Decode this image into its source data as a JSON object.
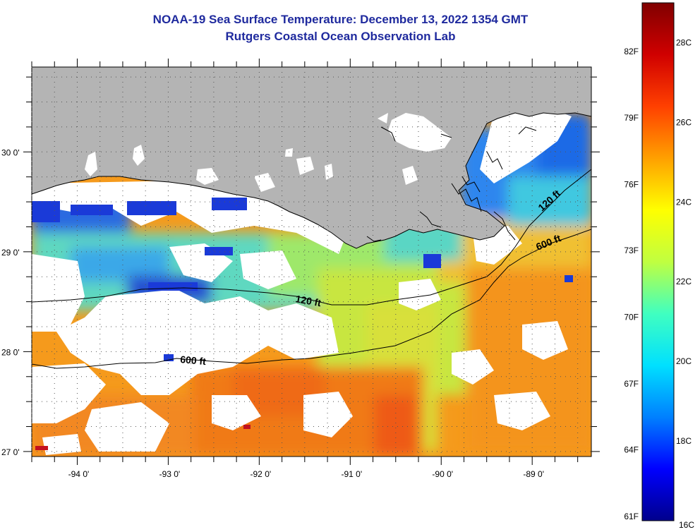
{
  "title": "NOAA-19 Sea Surface Temperature:  December 13, 2022 1354 GMT",
  "subtitle": "Rutgers Coastal Ocean Observation Lab",
  "map": {
    "lon_range": [
      -94.5,
      -88.35
    ],
    "lat_range": [
      26.95,
      30.85
    ],
    "lon_ticks": [
      {
        "value": -94,
        "label": "-94 0'"
      },
      {
        "value": -93,
        "label": "-93 0'"
      },
      {
        "value": -92,
        "label": "-92 0'"
      },
      {
        "value": -91,
        "label": "-91 0'"
      },
      {
        "value": -90,
        "label": "-90 0'"
      },
      {
        "value": -89,
        "label": "-89 0'"
      }
    ],
    "lat_ticks": [
      {
        "value": 27,
        "label": "27 0'"
      },
      {
        "value": 28,
        "label": "28 0'"
      },
      {
        "value": 29,
        "label": "29 0'"
      },
      {
        "value": 30,
        "label": "30 0'"
      }
    ],
    "isobaths": [
      {
        "label": "120 ft",
        "depth_ft": 120
      },
      {
        "label": "600 ft",
        "depth_ft": 600
      }
    ],
    "colors": {
      "land": "#b4b4b4",
      "cloud": "#ffffff",
      "grid": "#555555"
    }
  },
  "colorbar": {
    "min_c": 16,
    "max_c": 29,
    "fahrenheit_labels": [
      {
        "value_c": 16.11,
        "label": "61F"
      },
      {
        "value_c": 17.78,
        "label": "64F"
      },
      {
        "value_c": 19.44,
        "label": "67F"
      },
      {
        "value_c": 21.11,
        "label": "70F"
      },
      {
        "value_c": 22.78,
        "label": "73F"
      },
      {
        "value_c": 24.44,
        "label": "76F"
      },
      {
        "value_c": 26.11,
        "label": "79F"
      },
      {
        "value_c": 27.78,
        "label": "82F"
      }
    ],
    "celsius_labels": [
      {
        "value_c": 16,
        "label": "16C"
      },
      {
        "value_c": 18,
        "label": "18C"
      },
      {
        "value_c": 20,
        "label": "20C"
      },
      {
        "value_c": 22,
        "label": "22C"
      },
      {
        "value_c": 24,
        "label": "24C"
      },
      {
        "value_c": 26,
        "label": "26C"
      },
      {
        "value_c": 28,
        "label": "28C"
      }
    ],
    "gradient": [
      "#00008c",
      "#0000ff",
      "#0080ff",
      "#00e0ff",
      "#40ffc0",
      "#c0ff40",
      "#ffff00",
      "#ffa000",
      "#ff4000",
      "#d00000",
      "#800000"
    ]
  }
}
